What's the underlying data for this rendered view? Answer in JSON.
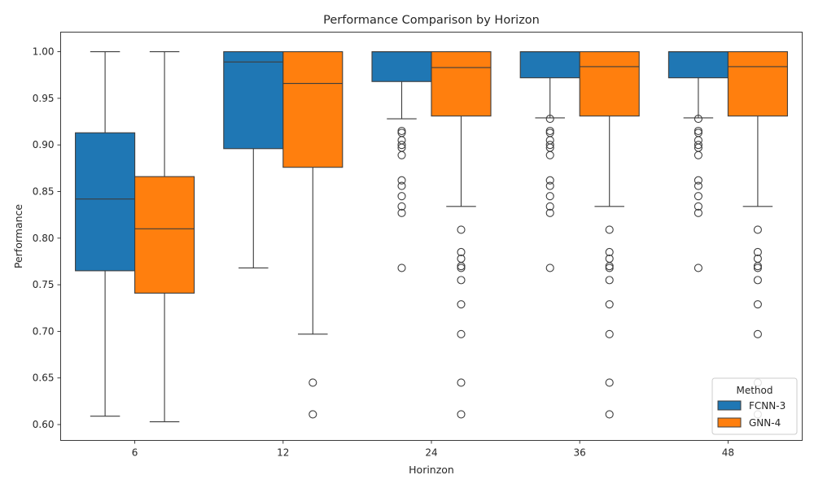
{
  "chart_data": {
    "type": "box",
    "title": "Performance Comparison by Horizon",
    "xlabel": "Horinzon",
    "ylabel": "Performance",
    "categories": [
      "6",
      "12",
      "24",
      "36",
      "48"
    ],
    "ylim": [
      0.583,
      1.021
    ],
    "yticks": [
      0.6,
      0.65,
      0.7,
      0.75,
      0.8,
      0.85,
      0.9,
      0.95,
      1.0
    ],
    "ytick_labels": [
      "0.60",
      "0.65",
      "0.70",
      "0.75",
      "0.80",
      "0.85",
      "0.90",
      "0.95",
      "1.00"
    ],
    "grid": false,
    "legend": {
      "title": "Method",
      "position": "bottom-right"
    },
    "series": [
      {
        "name": "FCNN-3",
        "color": "#1f77b4",
        "boxes": [
          {
            "whisker_low": 0.609,
            "q1": 0.765,
            "median": 0.842,
            "q3": 0.913,
            "whisker_high": 1.0,
            "outliers": []
          },
          {
            "whisker_low": 0.768,
            "q1": 0.896,
            "median": 0.989,
            "q3": 1.0,
            "whisker_high": 1.0,
            "outliers": []
          },
          {
            "whisker_low": 0.928,
            "q1": 0.968,
            "median": 1.0,
            "q3": 1.0,
            "whisker_high": 1.0,
            "outliers": [
              0.915,
              0.913,
              0.905,
              0.9,
              0.897,
              0.889,
              0.862,
              0.856,
              0.845,
              0.834,
              0.827,
              0.768
            ]
          },
          {
            "whisker_low": 0.929,
            "q1": 0.972,
            "median": 1.0,
            "q3": 1.0,
            "whisker_high": 1.0,
            "outliers": [
              0.928,
              0.915,
              0.913,
              0.905,
              0.9,
              0.897,
              0.889,
              0.862,
              0.856,
              0.845,
              0.834,
              0.827,
              0.768
            ]
          },
          {
            "whisker_low": 0.929,
            "q1": 0.972,
            "median": 1.0,
            "q3": 1.0,
            "whisker_high": 1.0,
            "outliers": [
              0.928,
              0.915,
              0.913,
              0.905,
              0.9,
              0.897,
              0.889,
              0.862,
              0.856,
              0.845,
              0.834,
              0.827,
              0.768
            ]
          }
        ]
      },
      {
        "name": "GNN-4",
        "color": "#ff7f0e",
        "boxes": [
          {
            "whisker_low": 0.603,
            "q1": 0.741,
            "median": 0.81,
            "q3": 0.866,
            "whisker_high": 1.0,
            "outliers": []
          },
          {
            "whisker_low": 0.697,
            "q1": 0.876,
            "median": 0.966,
            "q3": 1.0,
            "whisker_high": 1.0,
            "outliers": [
              0.645,
              0.611
            ]
          },
          {
            "whisker_low": 0.834,
            "q1": 0.931,
            "median": 0.983,
            "q3": 1.0,
            "whisker_high": 1.0,
            "outliers": [
              0.809,
              0.785,
              0.778,
              0.77,
              0.768,
              0.755,
              0.729,
              0.697,
              0.645,
              0.611
            ]
          },
          {
            "whisker_low": 0.834,
            "q1": 0.931,
            "median": 0.984,
            "q3": 1.0,
            "whisker_high": 1.0,
            "outliers": [
              0.809,
              0.785,
              0.778,
              0.77,
              0.768,
              0.755,
              0.729,
              0.697,
              0.645,
              0.611
            ]
          },
          {
            "whisker_low": 0.834,
            "q1": 0.931,
            "median": 0.984,
            "q3": 1.0,
            "whisker_high": 1.0,
            "outliers": [
              0.809,
              0.785,
              0.778,
              0.77,
              0.768,
              0.755,
              0.729,
              0.697,
              0.645,
              0.611
            ]
          }
        ]
      }
    ]
  }
}
